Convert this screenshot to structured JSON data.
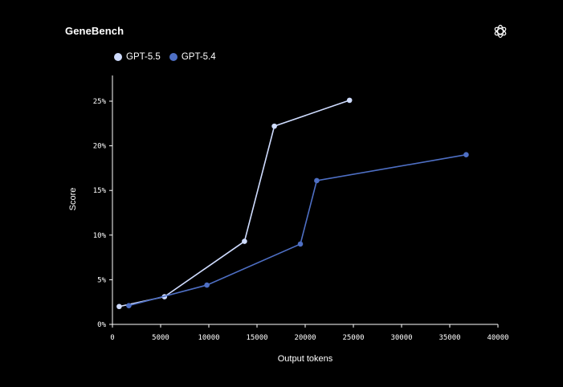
{
  "title": "GeneBench",
  "logo_icon": "openai-logo-icon",
  "chart_data": {
    "type": "line",
    "title": "GeneBench",
    "xlabel": "Output tokens",
    "ylabel": "Score",
    "xlim": [
      0,
      40000
    ],
    "ylim": [
      0,
      25
    ],
    "x_ticks": [
      0,
      5000,
      10000,
      15000,
      20000,
      25000,
      30000,
      35000,
      40000
    ],
    "x_tick_labels": [
      "0",
      "5000",
      "10000",
      "15000",
      "20000",
      "25000",
      "30000",
      "35000",
      "40000"
    ],
    "y_ticks": [
      0,
      5,
      10,
      15,
      20,
      25
    ],
    "y_tick_labels": [
      "0%",
      "5%",
      "10%",
      "15%",
      "20%",
      "25%"
    ],
    "grid": false,
    "legend_position": "top-left",
    "series": [
      {
        "name": "GPT-5.5",
        "color": "#cfdcff",
        "x": [
          700,
          5400,
          13700,
          16800,
          24600
        ],
        "y": [
          2.0,
          3.1,
          9.3,
          22.2,
          25.1
        ]
      },
      {
        "name": "GPT-5.4",
        "color": "#4e6fc4",
        "x": [
          1700,
          9800,
          19500,
          21200,
          36700
        ],
        "y": [
          2.1,
          4.4,
          9.0,
          16.1,
          19.0
        ]
      }
    ]
  }
}
